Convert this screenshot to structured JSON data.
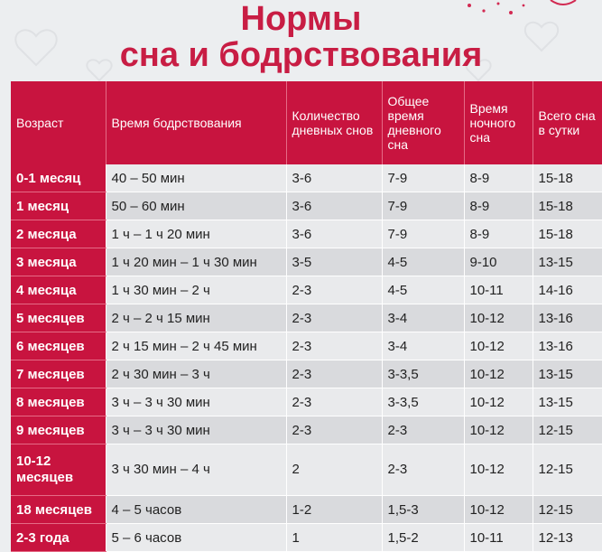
{
  "title": {
    "line1": "Нормы",
    "line2": "сна и бодрствования"
  },
  "table": {
    "headers": [
      "Возраст",
      "Время бодрствования",
      "Количество дневных снов",
      "Общее время дневного сна",
      "Время ночного сна",
      "Всего сна в сутки"
    ],
    "rows": [
      [
        "0-1 месяц",
        "40 – 50 мин",
        "3-6",
        "7-9",
        "8-9",
        "15-18"
      ],
      [
        "1 месяц",
        "50 – 60 мин",
        "3-6",
        "7-9",
        "8-9",
        "15-18"
      ],
      [
        "2 месяца",
        "1 ч – 1 ч 20 мин",
        "3-6",
        "7-9",
        "8-9",
        "15-18"
      ],
      [
        "3 месяца",
        "1 ч 20 мин – 1 ч 30 мин",
        "3-5",
        "4-5",
        "9-10",
        "13-15"
      ],
      [
        "4 месяца",
        "1 ч 30 мин – 2 ч",
        "2-3",
        "4-5",
        "10-11",
        "14-16"
      ],
      [
        "5 месяцев",
        "2 ч – 2 ч 15 мин",
        "2-3",
        "3-4",
        "10-12",
        "13-16"
      ],
      [
        "6 месяцев",
        "2 ч 15 мин – 2 ч 45 мин",
        "2-3",
        "3-4",
        "10-12",
        "13-16"
      ],
      [
        "7 месяцев",
        "2 ч 30 мин – 3 ч",
        "2-3",
        "3-3,5",
        "10-12",
        "13-15"
      ],
      [
        "8 месяцев",
        "3 ч – 3 ч 30 мин",
        "2-3",
        "3-3,5",
        "10-12",
        "13-15"
      ],
      [
        "9 месяцев",
        "3 ч – 3 ч 30 мин",
        "2-3",
        "2-3",
        "10-12",
        "12-15"
      ],
      [
        "10-12 месяцев",
        "3 ч 30 мин – 4 ч",
        "2",
        "2-3",
        "10-12",
        "12-15"
      ],
      [
        "18 месяцев",
        "4 – 5 часов",
        "1-2",
        "1,5-3",
        "10-12",
        "12-15"
      ],
      [
        "2-3 года",
        "5 – 6 часов",
        "1",
        "1,5-2",
        "10-11",
        "12-13"
      ]
    ]
  },
  "colors": {
    "accent": "#c8143f",
    "title": "#c81d44",
    "row_light": "#e9eaec",
    "row_dark": "#d9dadd"
  }
}
